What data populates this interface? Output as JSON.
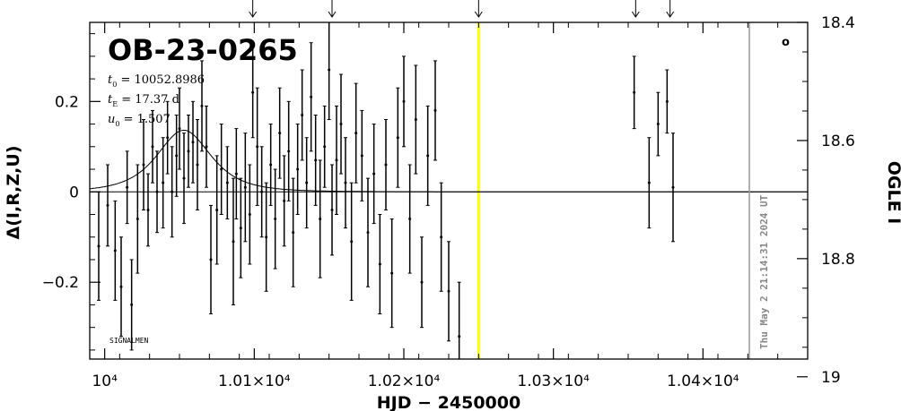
{
  "chart_data": {
    "type": "scatter",
    "title": "OB-23-0265",
    "xlabel": "HJD − 2450000",
    "ylabel_left": "Δ(I,R,Z,U)",
    "ylabel_right": "OGLE I",
    "xlim": [
      9990,
      10470
    ],
    "ylim": [
      -0.37,
      0.375
    ],
    "right_ylim": [
      18.97,
      18.4
    ],
    "x_ticks": [
      {
        "value": 10000,
        "label": "10⁴"
      },
      {
        "value": 10100,
        "label": "1.01×10⁴"
      },
      {
        "value": 10200,
        "label": "1.02×10⁴"
      },
      {
        "value": 10300,
        "label": "1.03×10⁴"
      },
      {
        "value": 10400,
        "label": "1.04×10⁴"
      }
    ],
    "y_ticks": [
      {
        "value": 0.2,
        "label": "0.2"
      },
      {
        "value": 0,
        "label": "0"
      },
      {
        "value": -0.2,
        "label": "−0.2"
      }
    ],
    "right_ticks": [
      {
        "value": 18.4,
        "label": "18.4"
      },
      {
        "value": 18.6,
        "label": "18.6"
      },
      {
        "value": 18.8,
        "label": "18.8"
      },
      {
        "value": 19.0,
        "label": "19"
      }
    ],
    "parameters": [
      {
        "sym": "t",
        "sub": "0",
        "text": " = 10052.8986"
      },
      {
        "sym": "t",
        "sub": "E",
        "text": " = 17.37 d"
      },
      {
        "sym": "u",
        "sub": "0",
        "text": " = 1.507"
      }
    ],
    "model": {
      "t0": 10052.8986,
      "tE": 17.37,
      "u0": 1.507,
      "scale": 0.29
    },
    "baseline": 0,
    "highlight_x": 10250,
    "highlight_color": "#ffff00",
    "vertical_line_x": 10431,
    "top_arrows_x": [
      10099,
      10152,
      10250,
      10355,
      10378
    ],
    "annotation": "SIGNALMEN",
    "timestamp": "Thu May  2 21:14:31 2024 UT",
    "legend_marker": "o",
    "points": [
      {
        "x": 9996,
        "y": -0.12,
        "err": 0.12
      },
      {
        "x": 10002,
        "y": -0.03,
        "err": 0.09
      },
      {
        "x": 10007,
        "y": -0.13,
        "err": 0.11
      },
      {
        "x": 10011,
        "y": -0.21,
        "err": 0.11
      },
      {
        "x": 10015,
        "y": 0.01,
        "err": 0.08
      },
      {
        "x": 10018,
        "y": -0.25,
        "err": 0.1
      },
      {
        "x": 10022,
        "y": -0.06,
        "err": 0.12
      },
      {
        "x": 10026,
        "y": 0.06,
        "err": 0.1
      },
      {
        "x": 10029,
        "y": -0.04,
        "err": 0.08
      },
      {
        "x": 10032,
        "y": 0.1,
        "err": 0.08
      },
      {
        "x": 10035,
        "y": 0.0,
        "err": 0.09
      },
      {
        "x": 10039,
        "y": 0.02,
        "err": 0.1
      },
      {
        "x": 10042,
        "y": 0.12,
        "err": 0.08
      },
      {
        "x": 10045,
        "y": 0.0,
        "err": 0.1
      },
      {
        "x": 10048,
        "y": 0.08,
        "err": 0.09
      },
      {
        "x": 10050,
        "y": 0.14,
        "err": 0.09
      },
      {
        "x": 10053,
        "y": 0.03,
        "err": 0.1
      },
      {
        "x": 10056,
        "y": 0.09,
        "err": 0.08
      },
      {
        "x": 10059,
        "y": 0.11,
        "err": 0.09
      },
      {
        "x": 10062,
        "y": 0.06,
        "err": 0.1
      },
      {
        "x": 10065,
        "y": 0.19,
        "err": 0.1
      },
      {
        "x": 10068,
        "y": 0.1,
        "err": 0.09
      },
      {
        "x": 10071,
        "y": -0.15,
        "err": 0.12
      },
      {
        "x": 10075,
        "y": -0.04,
        "err": 0.12
      },
      {
        "x": 10078,
        "y": 0.05,
        "err": 0.1
      },
      {
        "x": 10082,
        "y": 0.02,
        "err": 0.08
      },
      {
        "x": 10086,
        "y": -0.11,
        "err": 0.14
      },
      {
        "x": 10088,
        "y": 0.04,
        "err": 0.1
      },
      {
        "x": 10091,
        "y": -0.08,
        "err": 0.11
      },
      {
        "x": 10094,
        "y": 0.01,
        "err": 0.12
      },
      {
        "x": 10097,
        "y": -0.05,
        "err": 0.11
      },
      {
        "x": 10099,
        "y": 0.22,
        "err": 0.1
      },
      {
        "x": 10102,
        "y": 0.1,
        "err": 0.13
      },
      {
        "x": 10105,
        "y": 0.0,
        "err": 0.1
      },
      {
        "x": 10108,
        "y": -0.1,
        "err": 0.12
      },
      {
        "x": 10111,
        "y": 0.06,
        "err": 0.09
      },
      {
        "x": 10114,
        "y": -0.06,
        "err": 0.11
      },
      {
        "x": 10117,
        "y": 0.13,
        "err": 0.1
      },
      {
        "x": 10120,
        "y": -0.02,
        "err": 0.1
      },
      {
        "x": 10123,
        "y": 0.09,
        "err": 0.11
      },
      {
        "x": 10126,
        "y": -0.09,
        "err": 0.12
      },
      {
        "x": 10129,
        "y": 0.05,
        "err": 0.1
      },
      {
        "x": 10132,
        "y": 0.17,
        "err": 0.1
      },
      {
        "x": 10135,
        "y": 0.02,
        "err": 0.1
      },
      {
        "x": 10138,
        "y": 0.21,
        "err": 0.12
      },
      {
        "x": 10141,
        "y": 0.07,
        "err": 0.1
      },
      {
        "x": 10144,
        "y": -0.06,
        "err": 0.13
      },
      {
        "x": 10147,
        "y": 0.1,
        "err": 0.09
      },
      {
        "x": 10150,
        "y": 0.27,
        "err": 0.11
      },
      {
        "x": 10152,
        "y": -0.04,
        "err": 0.1
      },
      {
        "x": 10155,
        "y": 0.07,
        "err": 0.12
      },
      {
        "x": 10158,
        "y": 0.15,
        "err": 0.11
      },
      {
        "x": 10161,
        "y": 0.02,
        "err": 0.1
      },
      {
        "x": 10165,
        "y": -0.11,
        "err": 0.13
      },
      {
        "x": 10168,
        "y": 0.13,
        "err": 0.11
      },
      {
        "x": 10172,
        "y": 0.08,
        "err": 0.1
      },
      {
        "x": 10176,
        "y": -0.09,
        "err": 0.12
      },
      {
        "x": 10180,
        "y": 0.04,
        "err": 0.11
      },
      {
        "x": 10184,
        "y": -0.16,
        "err": 0.11
      },
      {
        "x": 10188,
        "y": 0.06,
        "err": 0.1
      },
      {
        "x": 10192,
        "y": -0.18,
        "err": 0.12
      },
      {
        "x": 10196,
        "y": 0.12,
        "err": 0.11
      },
      {
        "x": 10200,
        "y": 0.2,
        "err": 0.1
      },
      {
        "x": 10204,
        "y": -0.06,
        "err": 0.12
      },
      {
        "x": 10208,
        "y": 0.16,
        "err": 0.12
      },
      {
        "x": 10212,
        "y": -0.2,
        "err": 0.1
      },
      {
        "x": 10216,
        "y": 0.08,
        "err": 0.11
      },
      {
        "x": 10221,
        "y": 0.18,
        "err": 0.11
      },
      {
        "x": 10225,
        "y": -0.1,
        "err": 0.12
      },
      {
        "x": 10230,
        "y": -0.22,
        "err": 0.11
      },
      {
        "x": 10237,
        "y": -0.32,
        "err": 0.12
      },
      {
        "x": 10354,
        "y": 0.22,
        "err": 0.08
      },
      {
        "x": 10364,
        "y": 0.02,
        "err": 0.1
      },
      {
        "x": 10370,
        "y": 0.15,
        "err": 0.07
      },
      {
        "x": 10376,
        "y": 0.2,
        "err": 0.07
      },
      {
        "x": 10380,
        "y": 0.01,
        "err": 0.12
      }
    ]
  }
}
